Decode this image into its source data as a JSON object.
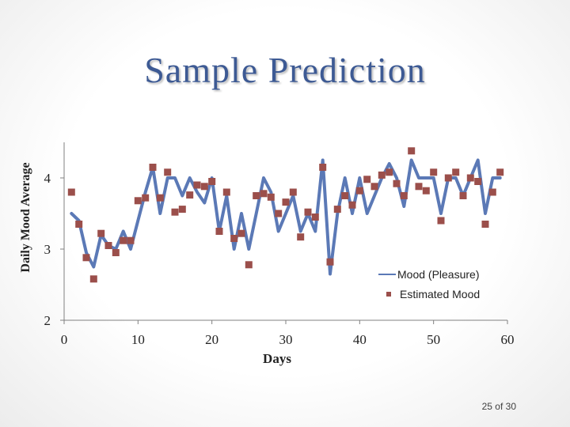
{
  "slide": {
    "title": "Sample Prediction",
    "page_number": "25 of 30"
  },
  "colors": {
    "title": "#3d5a94",
    "line": "#5b79b6",
    "marker": "#9b4f4b",
    "axis": "#808080",
    "text": "#222222"
  },
  "chart_data": {
    "type": "line",
    "title": "",
    "xlabel": "Days",
    "ylabel": "Daily Mood Average",
    "xlim": [
      0,
      60
    ],
    "ylim": [
      2,
      4.5
    ],
    "xticks": [
      0,
      10,
      20,
      30,
      40,
      50,
      60
    ],
    "yticks": [
      2,
      3,
      4
    ],
    "legend_position": "right",
    "series": [
      {
        "name": "Mood (Pleasure)",
        "kind": "line",
        "x": [
          1,
          2,
          3,
          4,
          5,
          6,
          7,
          8,
          9,
          10,
          11,
          12,
          13,
          14,
          15,
          16,
          17,
          18,
          19,
          20,
          21,
          22,
          23,
          24,
          25,
          26,
          27,
          28,
          29,
          30,
          31,
          32,
          33,
          34,
          35,
          36,
          37,
          38,
          39,
          40,
          41,
          42,
          43,
          44,
          45,
          46,
          47,
          48,
          49,
          50,
          51,
          52,
          53,
          54,
          55,
          56,
          57,
          58,
          59
        ],
        "values": [
          3.5,
          3.4,
          2.95,
          2.75,
          3.2,
          3.05,
          3.0,
          3.25,
          3.0,
          3.4,
          3.8,
          4.15,
          3.5,
          4.0,
          4.0,
          3.75,
          4.0,
          3.8,
          3.65,
          4.0,
          3.25,
          3.75,
          3.0,
          3.5,
          3.0,
          3.5,
          4.0,
          3.8,
          3.25,
          3.5,
          3.75,
          3.25,
          3.5,
          3.25,
          4.25,
          2.65,
          3.5,
          4.0,
          3.5,
          4.0,
          3.5,
          3.75,
          4.0,
          4.2,
          4.0,
          3.6,
          4.25,
          4.0,
          4.0,
          4.0,
          3.5,
          4.0,
          4.0,
          3.75,
          4.0,
          4.25,
          3.5,
          4.0,
          4.0
        ]
      },
      {
        "name": "Estimated Mood",
        "kind": "scatter",
        "x": [
          1,
          2,
          3,
          4,
          5,
          6,
          7,
          8,
          9,
          10,
          11,
          12,
          13,
          14,
          15,
          16,
          17,
          18,
          19,
          20,
          21,
          22,
          23,
          24,
          25,
          26,
          27,
          28,
          29,
          30,
          31,
          32,
          33,
          34,
          35,
          36,
          37,
          38,
          39,
          40,
          41,
          42,
          43,
          44,
          45,
          46,
          47,
          48,
          49,
          50,
          51,
          52,
          53,
          54,
          55,
          56,
          57,
          58,
          59
        ],
        "values": [
          3.8,
          3.35,
          2.88,
          2.58,
          3.22,
          3.05,
          2.95,
          3.12,
          3.12,
          3.68,
          3.72,
          4.15,
          3.72,
          4.08,
          3.52,
          3.56,
          3.76,
          3.9,
          3.88,
          3.95,
          3.25,
          3.8,
          3.15,
          3.22,
          2.78,
          3.75,
          3.78,
          3.73,
          3.5,
          3.66,
          3.8,
          3.17,
          3.52,
          3.45,
          4.15,
          2.82,
          3.56,
          3.75,
          3.62,
          3.82,
          3.98,
          3.88,
          4.04,
          4.08,
          3.92,
          3.75,
          4.38,
          3.88,
          3.82,
          4.08,
          3.4,
          4.0,
          4.08,
          3.75,
          4.0,
          3.95,
          3.35,
          3.8,
          4.08
        ]
      }
    ]
  }
}
